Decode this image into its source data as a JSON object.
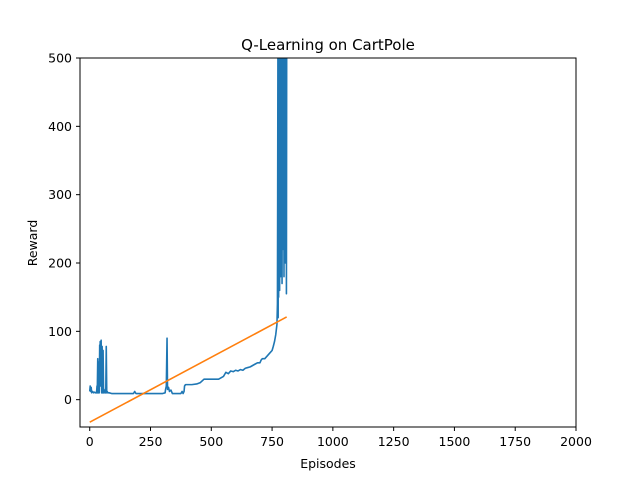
{
  "chart_data": {
    "type": "line",
    "title": "Q-Learning on CartPole",
    "xlabel": "Episodes",
    "ylabel": "Reward",
    "xlim": [
      -40,
      2000
    ],
    "ylim": [
      -40,
      500
    ],
    "xticks": [
      0,
      250,
      500,
      750,
      1000,
      1250,
      1500,
      1750,
      2000
    ],
    "yticks": [
      0,
      100,
      200,
      300,
      400,
      500
    ],
    "grid": false,
    "legend": "none",
    "series": [
      {
        "color": "#1f77b4",
        "points": [
          [
            0,
            12
          ],
          [
            2,
            20
          ],
          [
            4,
            12
          ],
          [
            6,
            18
          ],
          [
            8,
            10
          ],
          [
            12,
            12
          ],
          [
            16,
            10
          ],
          [
            20,
            11
          ],
          [
            24,
            10
          ],
          [
            28,
            10
          ],
          [
            30,
            20
          ],
          [
            31,
            10
          ],
          [
            33,
            60
          ],
          [
            35,
            10
          ],
          [
            37,
            55
          ],
          [
            39,
            10
          ],
          [
            41,
            80
          ],
          [
            42,
            30
          ],
          [
            43,
            85
          ],
          [
            45,
            20
          ],
          [
            47,
            87
          ],
          [
            49,
            10
          ],
          [
            51,
            78
          ],
          [
            53,
            10
          ],
          [
            55,
            72
          ],
          [
            57,
            10
          ],
          [
            60,
            12
          ],
          [
            62,
            10
          ],
          [
            64,
            15
          ],
          [
            66,
            10
          ],
          [
            68,
            78
          ],
          [
            70,
            10
          ],
          [
            72,
            12
          ],
          [
            75,
            10
          ],
          [
            80,
            10
          ],
          [
            90,
            9
          ],
          [
            100,
            9
          ],
          [
            120,
            9
          ],
          [
            140,
            9
          ],
          [
            160,
            9
          ],
          [
            180,
            9
          ],
          [
            185,
            12
          ],
          [
            190,
            9
          ],
          [
            210,
            9
          ],
          [
            240,
            9
          ],
          [
            270,
            9
          ],
          [
            300,
            9
          ],
          [
            310,
            10
          ],
          [
            312,
            15
          ],
          [
            315,
            20
          ],
          [
            318,
            90
          ],
          [
            320,
            15
          ],
          [
            324,
            18
          ],
          [
            328,
            12
          ],
          [
            334,
            14
          ],
          [
            340,
            9
          ],
          [
            360,
            9
          ],
          [
            375,
            9
          ],
          [
            380,
            12
          ],
          [
            384,
            9
          ],
          [
            388,
            12
          ],
          [
            390,
            20
          ],
          [
            394,
            22
          ],
          [
            420,
            22
          ],
          [
            440,
            23
          ],
          [
            455,
            25
          ],
          [
            470,
            30
          ],
          [
            500,
            30
          ],
          [
            530,
            30
          ],
          [
            540,
            32
          ],
          [
            550,
            34
          ],
          [
            555,
            37
          ],
          [
            560,
            40
          ],
          [
            570,
            38
          ],
          [
            580,
            42
          ],
          [
            590,
            41
          ],
          [
            600,
            43
          ],
          [
            610,
            42
          ],
          [
            620,
            44
          ],
          [
            630,
            43
          ],
          [
            640,
            46
          ],
          [
            650,
            47
          ],
          [
            660,
            48
          ],
          [
            670,
            50
          ],
          [
            680,
            52
          ],
          [
            690,
            54
          ],
          [
            700,
            54
          ],
          [
            705,
            58
          ],
          [
            710,
            60
          ],
          [
            720,
            60
          ],
          [
            730,
            64
          ],
          [
            740,
            68
          ],
          [
            750,
            72
          ],
          [
            755,
            78
          ],
          [
            760,
            85
          ],
          [
            765,
            95
          ],
          [
            770,
            110
          ],
          [
            772,
            140
          ],
          [
            773,
            300
          ],
          [
            774,
            500
          ],
          [
            775,
            120
          ],
          [
            776,
            400
          ],
          [
            777,
            150
          ],
          [
            778,
            500
          ],
          [
            779,
            380
          ],
          [
            780,
            500
          ],
          [
            781,
            160
          ],
          [
            782,
            500
          ],
          [
            783,
            200
          ],
          [
            784,
            500
          ],
          [
            785,
            180
          ],
          [
            786,
            500
          ],
          [
            787,
            230
          ],
          [
            788,
            500
          ],
          [
            789,
            250
          ],
          [
            790,
            500
          ],
          [
            791,
            170
          ],
          [
            792,
            500
          ],
          [
            793,
            300
          ],
          [
            794,
            500
          ],
          [
            795,
            220
          ],
          [
            796,
            500
          ],
          [
            797,
            260
          ],
          [
            798,
            500
          ],
          [
            799,
            180
          ],
          [
            800,
            500
          ],
          [
            801,
            250
          ],
          [
            802,
            500
          ],
          [
            803,
            300
          ],
          [
            804,
            500
          ],
          [
            805,
            200
          ],
          [
            806,
            500
          ],
          [
            807,
            280
          ],
          [
            808,
            500
          ],
          [
            809,
            155
          ],
          [
            810,
            500
          ]
        ]
      },
      {
        "color": "#ff7f0e",
        "points": [
          [
            0,
            -33
          ],
          [
            810,
            121
          ]
        ]
      }
    ]
  }
}
